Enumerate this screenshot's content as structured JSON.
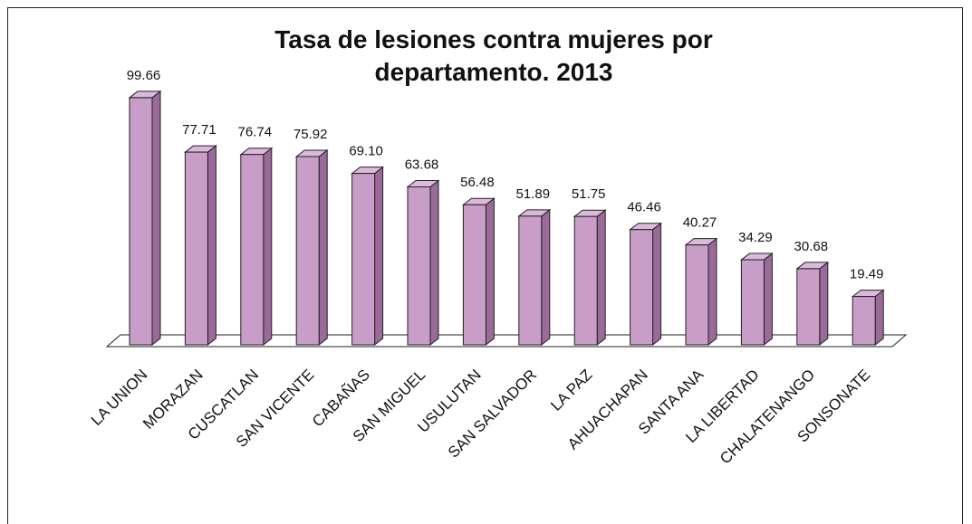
{
  "chart_data": {
    "type": "bar3d",
    "title": "Tasa de lesiones contra mujeres por departamento. 2013",
    "categories": [
      "LA UNION",
      "MORAZAN",
      "CUSCATLAN",
      "SAN VICENTE",
      "CABAÑAS",
      "SAN MIGUEL",
      "USULUTAN",
      "SAN SALVADOR",
      "LA PAZ",
      "AHUACHAPAN",
      "SANTA ANA",
      "LA LIBERTAD",
      "CHALATENANGO",
      "SONSONATE"
    ],
    "values": [
      99.66,
      77.71,
      76.74,
      75.92,
      69.1,
      63.68,
      56.48,
      51.89,
      51.75,
      46.46,
      40.27,
      34.29,
      30.68,
      19.49
    ],
    "value_labels": [
      "99.66",
      "77.71",
      "76.74",
      "75.92",
      "69.10",
      "63.68",
      "56.48",
      "51.89",
      "51.75",
      "46.46",
      "40.27",
      "34.29",
      "30.68",
      "19.49"
    ],
    "color": "#c89ec8"
  }
}
